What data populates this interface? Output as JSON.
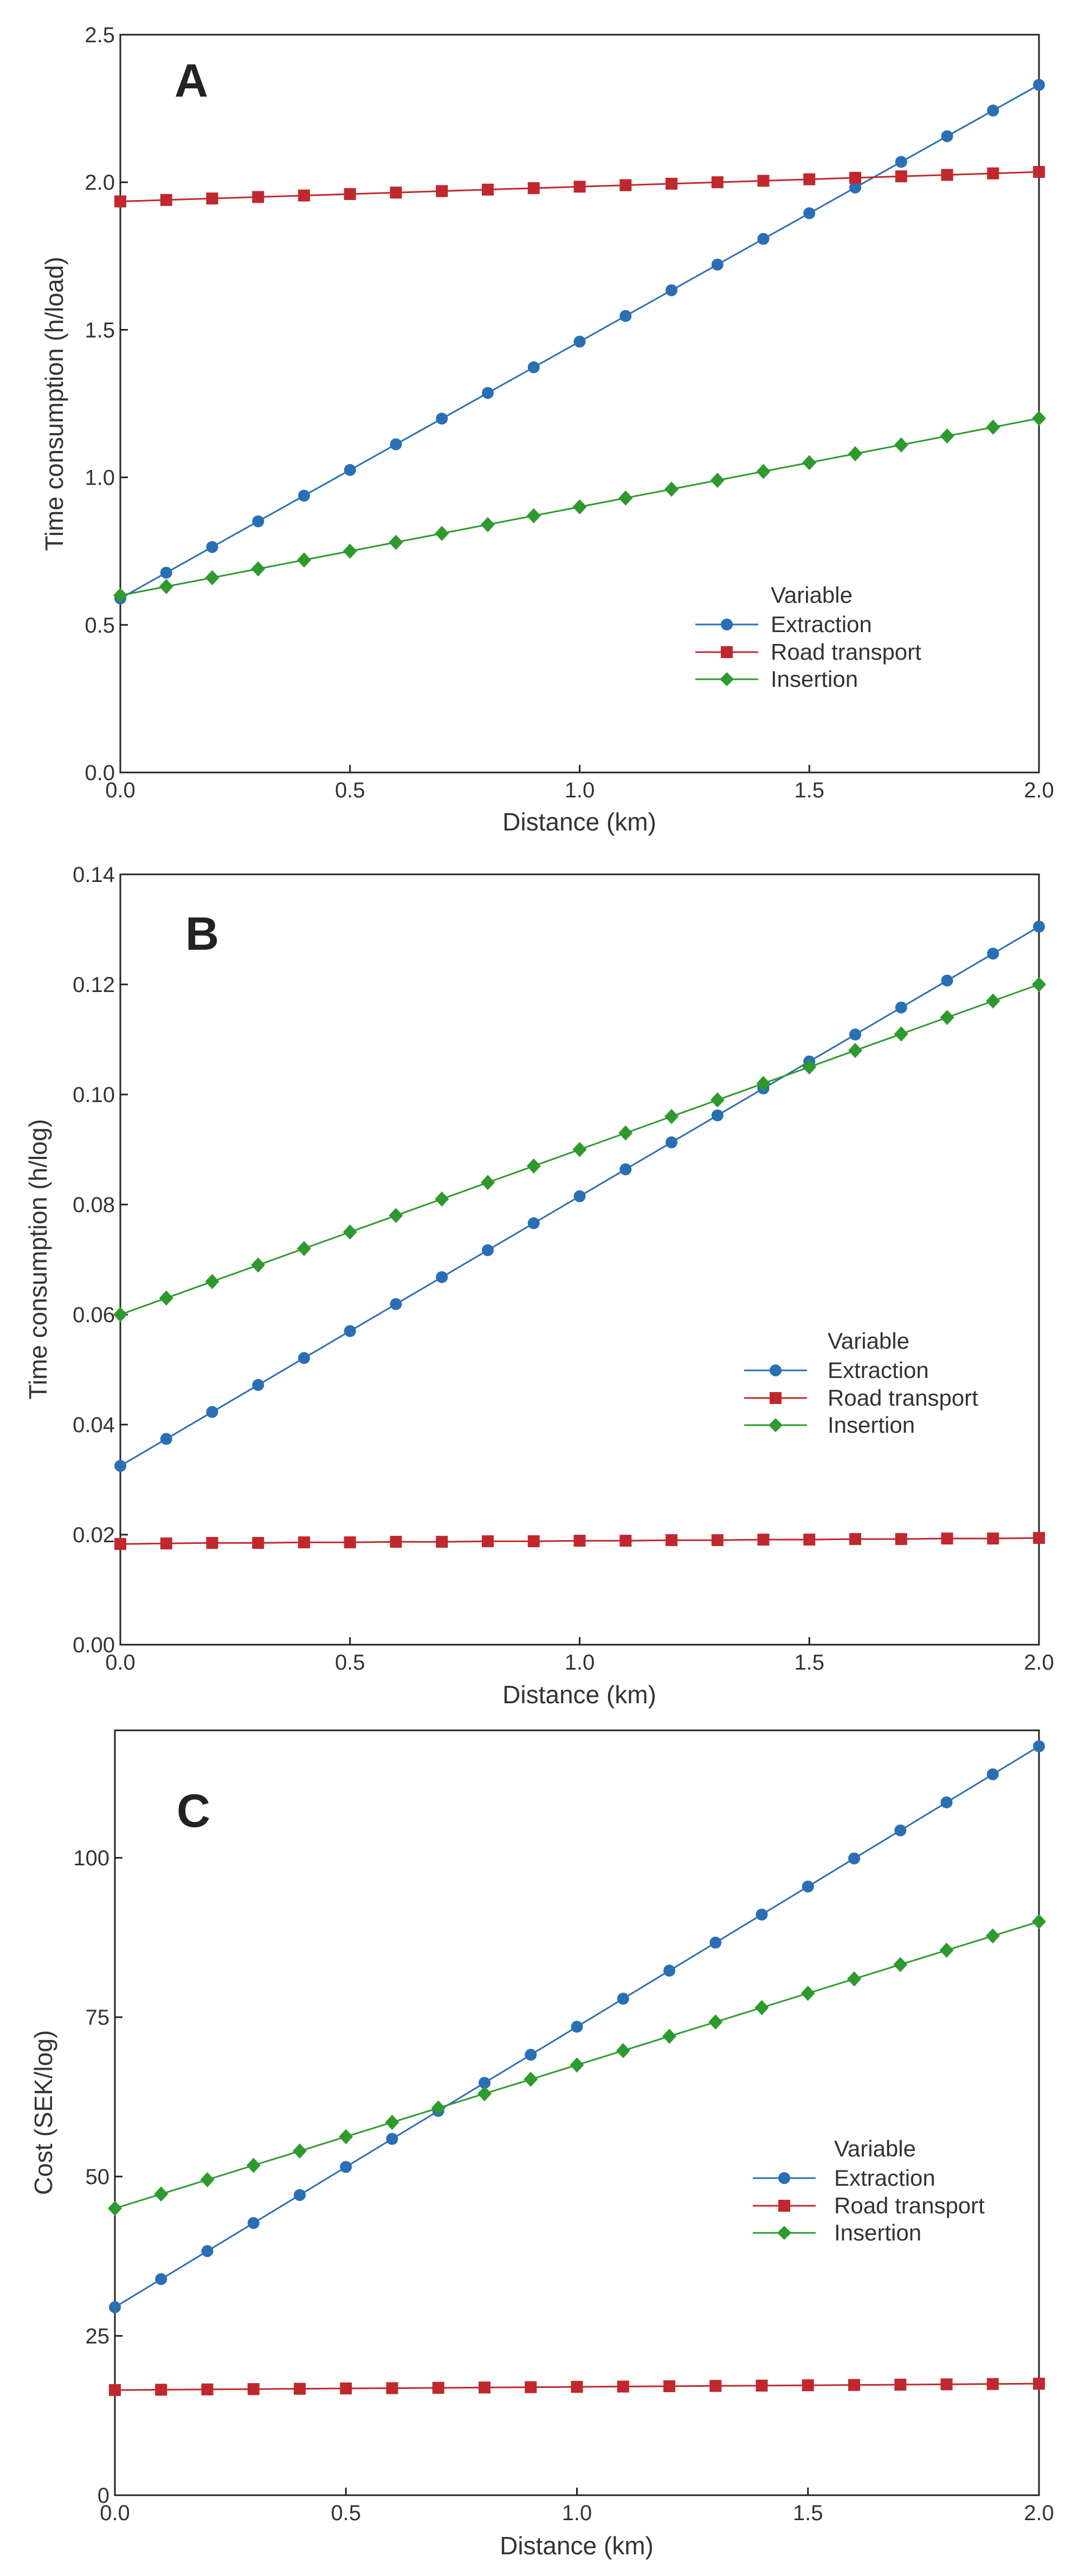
{
  "chart_data": [
    {
      "type": "line",
      "panel_label": "A",
      "xlabel": "Distance (km)",
      "ylabel": "Time consumption (h/load)",
      "xlim": [
        0.0,
        2.0
      ],
      "ylim": [
        0.0,
        2.5
      ],
      "xticks": [
        "0.0",
        "0.5",
        "1.0",
        "1.5",
        "2.0"
      ],
      "yticks": [
        "0.0",
        "0.5",
        "1.0",
        "1.5",
        "2.0",
        "2.5"
      ],
      "xtick_values": [
        0.0,
        0.5,
        1.0,
        1.5,
        2.0
      ],
      "ytick_values": [
        0.0,
        0.5,
        1.0,
        1.5,
        2.0,
        2.5
      ],
      "legend_title": "Variable",
      "legend_position": "right",
      "x": [
        0.0,
        0.1,
        0.2,
        0.3,
        0.4,
        0.5,
        0.6,
        0.7,
        0.8,
        0.9,
        1.0,
        1.1,
        1.2,
        1.3,
        1.4,
        1.5,
        1.6,
        1.7,
        1.8,
        1.9,
        2.0
      ],
      "series": [
        {
          "name": "Extraction",
          "color": "#2a6fb5",
          "marker": "circle",
          "values": [
            0.59,
            0.677,
            0.764,
            0.851,
            0.938,
            1.025,
            1.112,
            1.199,
            1.286,
            1.373,
            1.46,
            1.547,
            1.634,
            1.721,
            1.808,
            1.895,
            1.982,
            2.069,
            2.156,
            2.243,
            2.33
          ]
        },
        {
          "name": "Road transport",
          "color": "#c0282d",
          "marker": "square",
          "values": [
            1.935,
            1.94,
            1.945,
            1.95,
            1.955,
            1.96,
            1.965,
            1.97,
            1.975,
            1.98,
            1.985,
            1.99,
            1.995,
            2.0,
            2.005,
            2.01,
            2.015,
            2.02,
            2.025,
            2.03,
            2.035
          ]
        },
        {
          "name": "Insertion",
          "color": "#2e9a2e",
          "marker": "diamond",
          "values": [
            0.6,
            0.63,
            0.66,
            0.69,
            0.72,
            0.75,
            0.78,
            0.81,
            0.84,
            0.87,
            0.9,
            0.93,
            0.96,
            0.99,
            1.02,
            1.05,
            1.08,
            1.11,
            1.14,
            1.17,
            1.2
          ]
        }
      ]
    },
    {
      "type": "line",
      "panel_label": "B",
      "xlabel": "Distance (km)",
      "ylabel": "Time consumption (h/log)",
      "xlim": [
        0.0,
        2.0
      ],
      "ylim": [
        0.0,
        0.14
      ],
      "xticks": [
        "0.0",
        "0.5",
        "1.0",
        "1.5",
        "2.0"
      ],
      "yticks": [
        "0.00",
        "0.02",
        "0.04",
        "0.06",
        "0.08",
        "0.10",
        "0.12",
        "0.14"
      ],
      "xtick_values": [
        0.0,
        0.5,
        1.0,
        1.5,
        2.0
      ],
      "ytick_values": [
        0.0,
        0.02,
        0.04,
        0.06,
        0.08,
        0.1,
        0.12,
        0.14
      ],
      "legend_title": "Variable",
      "legend_position": "right",
      "x": [
        0.0,
        0.1,
        0.2,
        0.3,
        0.4,
        0.5,
        0.6,
        0.7,
        0.8,
        0.9,
        1.0,
        1.1,
        1.2,
        1.3,
        1.4,
        1.5,
        1.6,
        1.7,
        1.8,
        1.9,
        2.0
      ],
      "series": [
        {
          "name": "Extraction",
          "color": "#2a6fb5",
          "marker": "circle",
          "values": [
            0.0325,
            0.0374,
            0.0423,
            0.0472,
            0.0521,
            0.057,
            0.0619,
            0.0668,
            0.0717,
            0.0766,
            0.0815,
            0.0864,
            0.0913,
            0.0962,
            0.1011,
            0.106,
            0.1109,
            0.1158,
            0.1207,
            0.1256,
            0.1305
          ]
        },
        {
          "name": "Road transport",
          "color": "#c0282d",
          "marker": "square",
          "values": [
            0.0183,
            0.0184,
            0.0185,
            0.0185,
            0.0186,
            0.0186,
            0.0187,
            0.0187,
            0.0188,
            0.0188,
            0.0189,
            0.0189,
            0.019,
            0.019,
            0.0191,
            0.0191,
            0.0192,
            0.0192,
            0.0193,
            0.0193,
            0.0194
          ]
        },
        {
          "name": "Insertion",
          "color": "#2e9a2e",
          "marker": "diamond",
          "values": [
            0.06,
            0.063,
            0.066,
            0.069,
            0.072,
            0.075,
            0.078,
            0.081,
            0.084,
            0.087,
            0.09,
            0.093,
            0.096,
            0.099,
            0.102,
            0.105,
            0.108,
            0.111,
            0.114,
            0.117,
            0.12
          ]
        }
      ]
    },
    {
      "type": "line",
      "panel_label": "C",
      "xlabel": "Distance (km)",
      "ylabel": "Cost (SEK/log)",
      "xlim": [
        0.0,
        2.0
      ],
      "ylim": [
        0,
        120
      ],
      "xticks": [
        "0.0",
        "0.5",
        "1.0",
        "1.5",
        "2.0"
      ],
      "yticks": [
        "0",
        "25",
        "50",
        "75",
        "100"
      ],
      "xtick_values": [
        0.0,
        0.5,
        1.0,
        1.5,
        2.0
      ],
      "ytick_values": [
        0,
        25,
        50,
        75,
        100
      ],
      "legend_title": "Variable",
      "legend_position": "right",
      "x": [
        0.0,
        0.1,
        0.2,
        0.3,
        0.4,
        0.5,
        0.6,
        0.7,
        0.8,
        0.9,
        1.0,
        1.1,
        1.2,
        1.3,
        1.4,
        1.5,
        1.6,
        1.7,
        1.8,
        1.9,
        2.0
      ],
      "series": [
        {
          "name": "Extraction",
          "color": "#2a6fb5",
          "marker": "circle",
          "values": [
            29.5,
            33.9,
            38.3,
            42.7,
            47.1,
            51.5,
            55.9,
            60.3,
            64.7,
            69.1,
            73.5,
            77.9,
            82.3,
            86.7,
            91.1,
            95.5,
            99.9,
            104.3,
            108.7,
            113.1,
            117.5
          ]
        },
        {
          "name": "Road transport",
          "color": "#c0282d",
          "marker": "square",
          "values": [
            16.5,
            16.55,
            16.6,
            16.65,
            16.7,
            16.75,
            16.8,
            16.85,
            16.9,
            16.95,
            17.0,
            17.05,
            17.1,
            17.15,
            17.2,
            17.25,
            17.3,
            17.35,
            17.4,
            17.45,
            17.5
          ]
        },
        {
          "name": "Insertion",
          "color": "#2e9a2e",
          "marker": "diamond",
          "values": [
            45.0,
            47.25,
            49.5,
            51.75,
            54.0,
            56.25,
            58.5,
            60.75,
            63.0,
            65.25,
            67.5,
            69.75,
            72.0,
            74.25,
            76.5,
            78.75,
            81.0,
            83.25,
            85.5,
            87.75,
            90.0
          ]
        }
      ]
    }
  ]
}
